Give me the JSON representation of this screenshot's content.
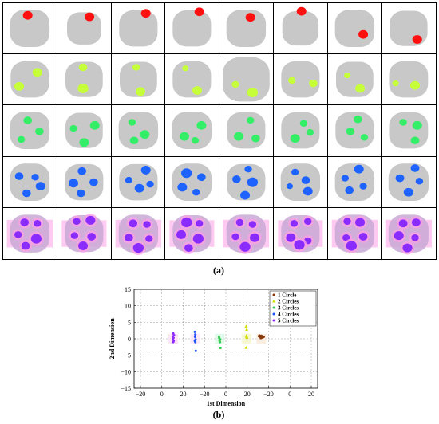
{
  "figure": {
    "caption_a": "(a)",
    "caption_b": "(b)"
  },
  "colors": {
    "disk": "#c8c8c8",
    "one_circle": "#ff1010",
    "two_circles": "#c6ff3a",
    "three_circles": "#33ee66",
    "four_circles": "#1f63ff",
    "five_circles": "#8b2cff",
    "five_halo": "#ff9ee6"
  },
  "panel_a": {
    "rows": 5,
    "columns": 8,
    "circle_counts": [
      1,
      2,
      3,
      4,
      5
    ]
  },
  "chart_data": {
    "type": "scatter",
    "xlabel": "1st Dimension",
    "ylabel": "2nd Dimension",
    "xlim": [
      -20,
      20
    ],
    "ylim": [
      -15,
      15
    ],
    "xticks": [
      "−20",
      "0",
      "20",
      "−20",
      "0",
      "20",
      "−20",
      "0",
      "20"
    ],
    "yticks": [
      15,
      10,
      5,
      0,
      -5,
      -10,
      -15
    ],
    "ytick_labels": [
      "15",
      "10",
      "5",
      "0",
      "−5",
      "−10",
      "−15"
    ],
    "grid": true,
    "legend_position": "top-right",
    "series": [
      {
        "name": "1 Circle",
        "color": "#8b3a0e",
        "marker": "circle",
        "points": [
          [
            16.0,
            0.8
          ],
          [
            16.5,
            0.5
          ],
          [
            17.0,
            0.9
          ],
          [
            17.5,
            0.4
          ],
          [
            16.8,
            0.2
          ],
          [
            18.0,
            0.6
          ],
          [
            16.2,
            1.0
          ],
          [
            17.3,
            0.7
          ]
        ]
      },
      {
        "name": "2 Circles",
        "color": "#d4e000",
        "marker": "triangle",
        "points": [
          [
            10.8,
            3.8
          ],
          [
            11.0,
            2.8
          ],
          [
            10.9,
            0.9
          ],
          [
            11.1,
            0.4
          ],
          [
            10.8,
            -2.7
          ],
          [
            11.0,
            0.6
          ]
        ]
      },
      {
        "name": "3 Circles",
        "color": "#33cc55",
        "marker": "circle",
        "points": [
          [
            -0.3,
            0.6
          ],
          [
            0.2,
            -0.2
          ],
          [
            -0.1,
            -0.6
          ],
          [
            0.3,
            -2.8
          ],
          [
            -0.2,
            0.2
          ],
          [
            0.1,
            -1.0
          ]
        ]
      },
      {
        "name": "4 Circles",
        "color": "#1f4fff",
        "marker": "circle",
        "points": [
          [
            -10.2,
            2.1
          ],
          [
            -10.0,
            1.3
          ],
          [
            -10.1,
            0.6
          ],
          [
            -9.9,
            -0.2
          ],
          [
            -10.2,
            -0.6
          ],
          [
            -10.0,
            -1.0
          ],
          [
            -9.8,
            -3.7
          ]
        ]
      },
      {
        "name": "5 Circles",
        "color": "#8b2cff",
        "marker": "circle",
        "points": [
          [
            -19.0,
            1.6
          ],
          [
            -18.7,
            1.1
          ],
          [
            -19.2,
            0.7
          ],
          [
            -18.9,
            0.3
          ],
          [
            -19.1,
            -0.2
          ],
          [
            -18.8,
            -0.6
          ],
          [
            -19.0,
            -1.0
          ]
        ]
      }
    ]
  }
}
